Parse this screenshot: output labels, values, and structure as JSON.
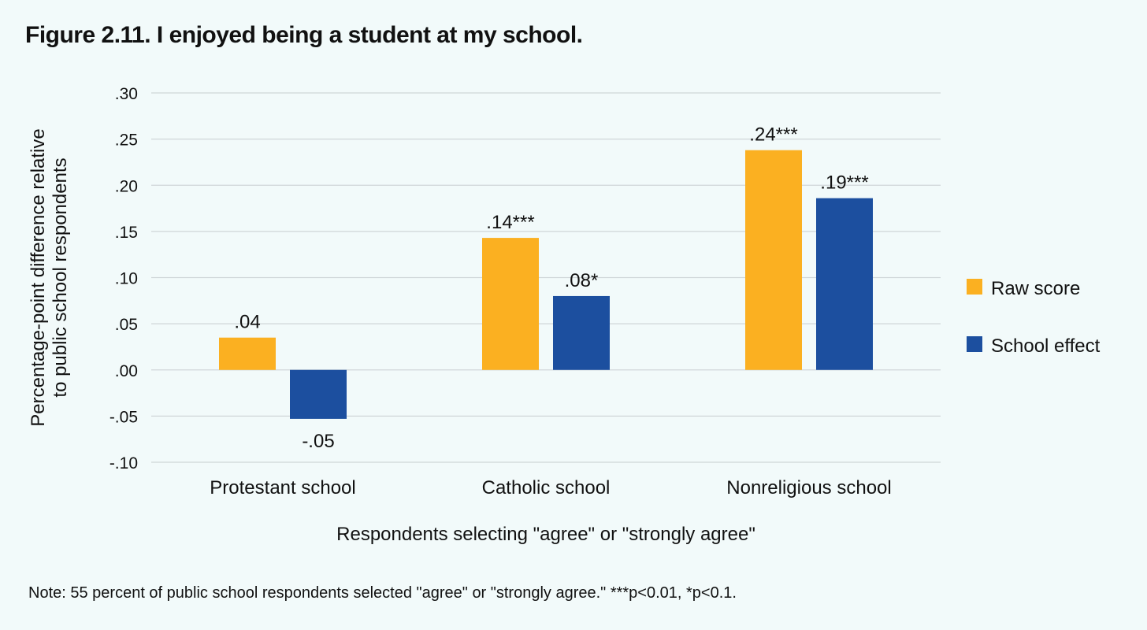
{
  "figure": {
    "title": "Figure 2.11. I enjoyed being a student at my school.",
    "note": "Note: 55 percent of public school respondents selected \"agree\" or \"strongly agree.\" ***p<0.01, *p<0.1."
  },
  "chart_data": {
    "type": "bar",
    "title": "Figure 2.11. I enjoyed being a student at my school.",
    "xlabel": "Respondents selecting \"agree\" or \"strongly agree\"",
    "ylabel_lines": [
      "Percentage-point difference relative",
      "to public school respondents"
    ],
    "categories": [
      "Protestant school",
      "Catholic school",
      "Nonreligious school"
    ],
    "ylim": [
      -0.1,
      0.3
    ],
    "yticks": [
      0.3,
      0.25,
      0.2,
      0.15,
      0.1,
      0.05,
      0.0,
      -0.05,
      -0.1
    ],
    "ytick_labels": [
      ".30",
      ".25",
      ".20",
      ".15",
      ".10",
      ".05",
      ".00",
      "-.05",
      "-.10"
    ],
    "grid": true,
    "legend_position": "right",
    "series": [
      {
        "name": "Raw score",
        "color": "#fbb021",
        "values": [
          0.035,
          0.143,
          0.238
        ],
        "labels": [
          ".04",
          ".14***",
          ".24***"
        ]
      },
      {
        "name": "School effect",
        "color": "#1c4f9f",
        "values": [
          -0.053,
          0.08,
          0.186
        ],
        "labels": [
          "-.05",
          ".08*",
          ".19***"
        ]
      }
    ]
  }
}
